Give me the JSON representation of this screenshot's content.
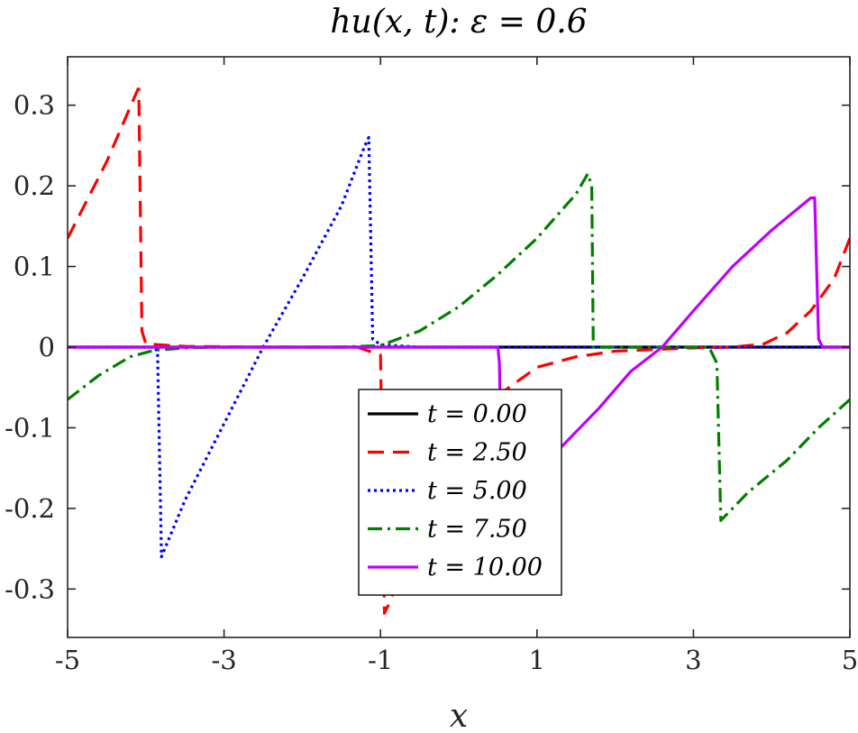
{
  "chart_data": {
    "type": "line",
    "title": "hu(x, t): ε = 0.6",
    "xlabel": "x",
    "ylabel": "",
    "xlim": [
      -5,
      5
    ],
    "ylim": [
      -0.36,
      0.36
    ],
    "xticks": [
      -5,
      -3,
      -1,
      1,
      3,
      5
    ],
    "xtick_labels": [
      "-5",
      "-3",
      "-1",
      "1",
      "3",
      "5"
    ],
    "yticks": [
      0.3,
      0.2,
      0.1,
      0,
      -0.1,
      -0.2,
      -0.3
    ],
    "ytick_labels": [
      "0.3",
      "0.2",
      "0.1",
      "0",
      "-0.1",
      "-0.2",
      "-0.3"
    ],
    "grid": false,
    "legend_position": "bottom-center",
    "series": [
      {
        "name": "t = 0.00",
        "color": "#000000",
        "style": "solid",
        "points": [
          [
            -5,
            0
          ],
          [
            5,
            0
          ]
        ]
      },
      {
        "name": "t = 2.50",
        "color": "#ff0000",
        "style": "dashed",
        "points": [
          [
            -5,
            0.135
          ],
          [
            -4.5,
            0.23
          ],
          [
            -4.1,
            0.32
          ],
          [
            -4.09,
            0.32
          ],
          [
            -4.05,
            0.02
          ],
          [
            -4.0,
            0.004
          ],
          [
            -3.5,
            0.001
          ],
          [
            -2.5,
            0.0
          ],
          [
            -1.3,
            0.0
          ],
          [
            -1.0,
            -0.01
          ],
          [
            -0.95,
            -0.33
          ],
          [
            -0.9,
            -0.32
          ],
          [
            -0.5,
            -0.22
          ],
          [
            0.0,
            -0.12
          ],
          [
            0.4,
            -0.07
          ],
          [
            0.5,
            -0.06
          ],
          [
            1.0,
            -0.025
          ],
          [
            1.5,
            -0.012
          ],
          [
            2.0,
            -0.005
          ],
          [
            3.0,
            -0.001
          ],
          [
            3.5,
            0.0
          ],
          [
            3.9,
            0.004
          ],
          [
            4.2,
            0.018
          ],
          [
            4.5,
            0.045
          ],
          [
            4.8,
            0.085
          ],
          [
            5.0,
            0.135
          ]
        ]
      },
      {
        "name": "t = 5.00",
        "color": "#0000ff",
        "style": "dotted",
        "points": [
          [
            -5,
            0.0
          ],
          [
            -4.5,
            0.0
          ],
          [
            -3.9,
            0.0
          ],
          [
            -3.85,
            -0.005
          ],
          [
            -3.8,
            -0.26
          ],
          [
            -3.5,
            -0.19
          ],
          [
            -3.0,
            -0.095
          ],
          [
            -2.5,
            0.0
          ],
          [
            -2.0,
            0.085
          ],
          [
            -1.5,
            0.175
          ],
          [
            -1.2,
            0.25
          ],
          [
            -1.15,
            0.26
          ],
          [
            -1.1,
            0.01
          ],
          [
            -1.0,
            0.003
          ],
          [
            -0.5,
            0.0
          ],
          [
            5.0,
            0.0
          ]
        ]
      },
      {
        "name": "t = 7.50",
        "color": "#007f00",
        "style": "dashdot",
        "points": [
          [
            -5,
            -0.065
          ],
          [
            -4.6,
            -0.035
          ],
          [
            -4.2,
            -0.012
          ],
          [
            -3.9,
            -0.004
          ],
          [
            -3.5,
            -0.001
          ],
          [
            -3.0,
            0.0
          ],
          [
            -1.5,
            0.0
          ],
          [
            -1.0,
            0.002
          ],
          [
            -0.5,
            0.02
          ],
          [
            0.0,
            0.05
          ],
          [
            0.5,
            0.09
          ],
          [
            1.0,
            0.135
          ],
          [
            1.5,
            0.19
          ],
          [
            1.65,
            0.215
          ],
          [
            1.7,
            0.2
          ],
          [
            1.72,
            0.0
          ],
          [
            2.0,
            0.0
          ],
          [
            3.2,
            0.0
          ],
          [
            3.3,
            -0.02
          ],
          [
            3.35,
            -0.215
          ],
          [
            3.7,
            -0.18
          ],
          [
            4.2,
            -0.14
          ],
          [
            4.6,
            -0.1
          ],
          [
            5.0,
            -0.065
          ]
        ]
      },
      {
        "name": "t = 10.00",
        "color": "#bf00ff",
        "style": "solid",
        "points": [
          [
            -5,
            0.0
          ],
          [
            0.5,
            0.0
          ],
          [
            0.52,
            -0.02
          ],
          [
            0.55,
            -0.185
          ],
          [
            0.9,
            -0.16
          ],
          [
            1.3,
            -0.125
          ],
          [
            1.8,
            -0.075
          ],
          [
            2.2,
            -0.03
          ],
          [
            2.6,
            0.0
          ],
          [
            3.0,
            0.045
          ],
          [
            3.5,
            0.1
          ],
          [
            4.0,
            0.145
          ],
          [
            4.5,
            0.185
          ],
          [
            4.55,
            0.185
          ],
          [
            4.6,
            0.01
          ],
          [
            4.65,
            0.0
          ],
          [
            5.0,
            0.0
          ]
        ]
      }
    ]
  }
}
